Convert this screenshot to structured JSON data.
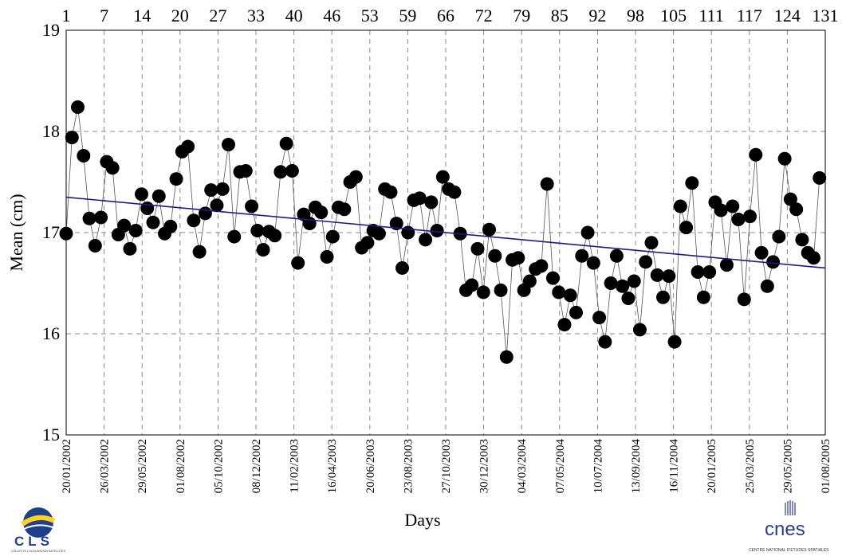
{
  "chart_data": {
    "type": "scatter",
    "xlabel": "Days",
    "ylabel": "Mean (cm)",
    "xlim": [
      1,
      132
    ],
    "ylim": [
      15,
      19
    ],
    "grid": true,
    "yticks": [
      15,
      16,
      17,
      18,
      19
    ],
    "top_ticks": [
      "1",
      "7",
      "14",
      "20",
      "27",
      "33",
      "40",
      "46",
      "53",
      "59",
      "66",
      "72",
      "79",
      "85",
      "92",
      "98",
      "105",
      "111",
      "117",
      "124",
      "131"
    ],
    "date_ticks": [
      "20/01/2002",
      "26/03/2002",
      "29/05/2002",
      "01/08/2002",
      "05/10/2002",
      "08/12/2002",
      "11/02/2003",
      "16/04/2003",
      "20/06/2003",
      "23/08/2003",
      "27/10/2003",
      "30/12/2003",
      "04/03/2004",
      "07/05/2004",
      "10/07/2004",
      "13/09/2004",
      "16/11/2004",
      "20/01/2005",
      "25/03/2005",
      "29/05/2005",
      "01/08/2005"
    ],
    "series": [
      {
        "values": [
          16.99,
          17.94,
          18.24,
          17.76,
          17.14,
          16.87,
          17.15,
          17.7,
          17.64,
          16.98,
          17.07,
          16.84,
          17.02,
          17.38,
          17.24,
          17.1,
          17.36,
          16.99,
          17.06,
          17.53,
          17.8,
          17.85,
          17.12,
          16.81,
          17.19,
          17.42,
          17.27,
          17.43,
          17.87,
          16.96,
          17.6,
          17.61,
          17.26,
          17.02,
          16.83,
          17.01,
          16.97,
          17.6,
          17.88,
          17.61,
          16.7,
          17.18,
          17.09,
          17.25,
          17.2,
          16.76,
          16.96,
          17.25,
          17.23,
          17.5,
          17.55,
          16.85,
          16.9,
          17.02,
          16.99,
          17.43,
          17.4,
          17.09,
          16.65,
          17.0,
          17.32,
          17.34,
          16.93,
          17.3,
          17.02,
          17.55,
          17.43,
          17.4,
          16.99,
          16.43,
          16.48,
          16.84,
          16.41,
          17.03,
          16.77,
          16.43,
          15.77,
          16.73,
          16.75,
          16.43,
          16.52,
          16.64,
          16.67,
          17.48,
          16.55,
          16.41,
          16.09,
          16.38,
          16.21,
          16.77,
          17.0,
          16.7,
          16.16,
          15.92,
          16.5,
          16.77,
          16.47,
          16.35,
          16.52,
          16.04,
          16.71,
          16.9,
          16.58,
          16.36,
          16.57,
          15.92,
          17.26,
          17.05,
          17.49,
          16.61,
          16.36,
          16.61,
          17.3,
          17.22,
          16.68,
          17.26,
          17.13,
          16.34,
          17.16,
          17.77,
          16.8,
          16.47,
          16.71,
          16.96,
          17.73,
          17.33,
          17.23,
          16.93,
          16.8,
          16.75,
          17.54
        ]
      }
    ],
    "trend": {
      "y_start": 17.35,
      "y_end": 16.65
    }
  },
  "logos": {
    "cls_text": "CLS",
    "cls_subtext": "COLLECTE LOCALISATION SATELLITES",
    "cnes_text": "cnes",
    "cnes_subtext": "CENTRE NATIONAL D'ETUDES SPATIALES"
  }
}
